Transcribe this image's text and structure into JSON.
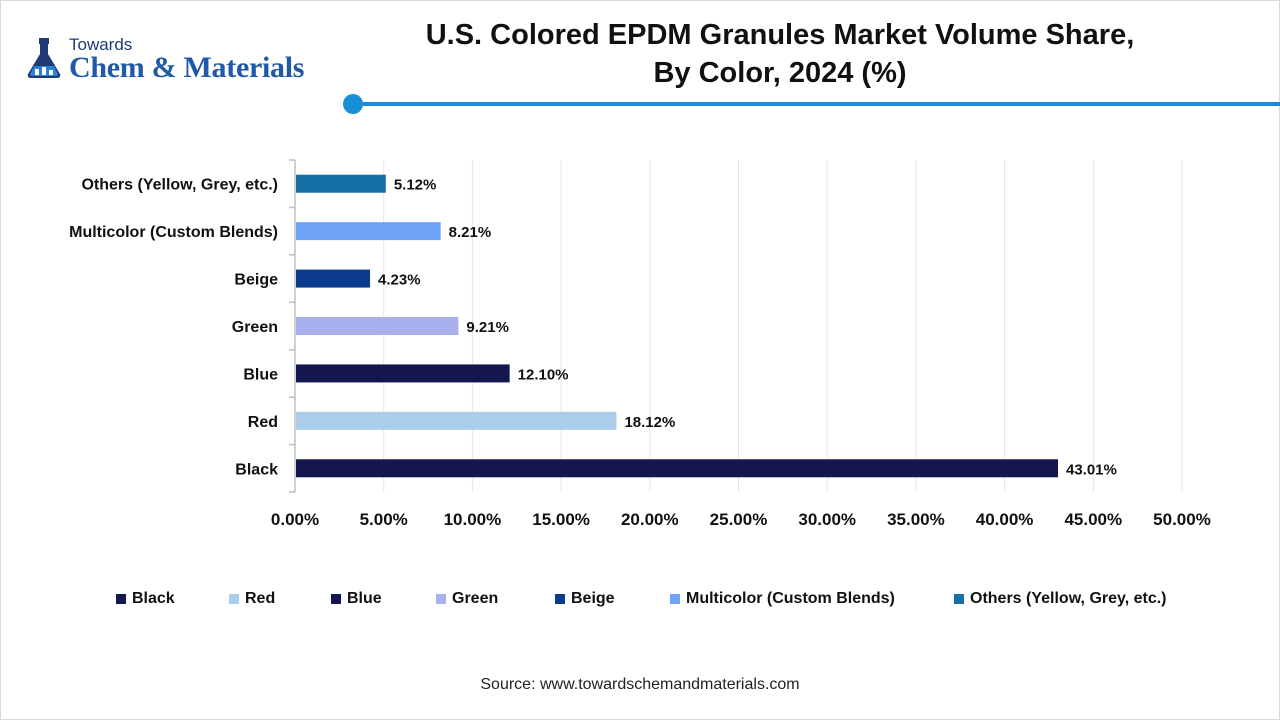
{
  "brand": {
    "top": "Towards",
    "main": "Chem & Materials"
  },
  "source": "Source: www.towardschemandmaterials.com",
  "colors": {
    "accent": "#1a8fd8"
  },
  "chart_data": {
    "type": "bar",
    "orientation": "horizontal",
    "title": "U.S. Colored EPDM Granules Market Volume Share, By Color, 2024 (%)",
    "title_lines": [
      "U.S. Colored EPDM Granules Market Volume Share,",
      "By Color, 2024 (%)"
    ],
    "categories": [
      "Black",
      "Red",
      "Blue",
      "Green",
      "Beige",
      "Multicolor (Custom Blends)",
      "Others (Yellow, Grey, etc.)"
    ],
    "values": [
      43.01,
      18.12,
      12.1,
      9.21,
      4.23,
      8.21,
      5.12
    ],
    "data_labels": [
      "43.01%",
      "18.12%",
      "12.10%",
      "9.21%",
      "4.23%",
      "8.21%",
      "5.12%"
    ],
    "colors": [
      "#14174d",
      "#a9cdea",
      "#14174d",
      "#a8b1ee",
      "#0b3b8c",
      "#6fa3f7",
      "#1670a5"
    ],
    "xlim": [
      0,
      50
    ],
    "xticks": [
      0,
      5,
      10,
      15,
      20,
      25,
      30,
      35,
      40,
      45,
      50
    ],
    "xtick_labels": [
      "0.00%",
      "5.00%",
      "10.00%",
      "15.00%",
      "20.00%",
      "25.00%",
      "30.00%",
      "35.00%",
      "40.00%",
      "45.00%",
      "50.00%"
    ],
    "grid": true,
    "legend_position": "bottom",
    "xlabel": "",
    "ylabel": ""
  }
}
